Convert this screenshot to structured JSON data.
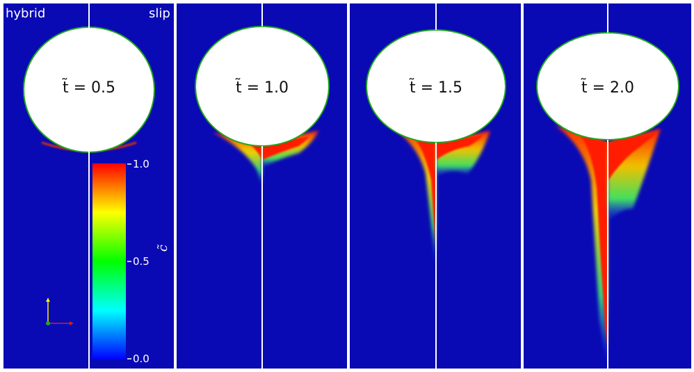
{
  "panel_labels": {
    "left": "hybrid",
    "right": "slip"
  },
  "panels": [
    {
      "time_label": "t̃ = 0.5"
    },
    {
      "time_label": "t̃ = 1.0"
    },
    {
      "time_label": "t̃ = 1.5"
    },
    {
      "time_label": "t̃ = 2.0"
    }
  ],
  "colorbar": {
    "title": "c̃",
    "ticks": [
      "1.0",
      "0.5",
      "0.0"
    ],
    "min": 0.0,
    "max": 1.0,
    "colormap": [
      "#0000ff",
      "#00ffff",
      "#00ff00",
      "#ffff00",
      "#ff0000"
    ]
  },
  "colors": {
    "background": "#0a0ab4",
    "bubble": "#ffffff",
    "divider": "#ffffff",
    "plume": "#d20000"
  },
  "axes_icon": {
    "colors": [
      "#ffee00",
      "#cc2222",
      "#22aa22"
    ]
  }
}
